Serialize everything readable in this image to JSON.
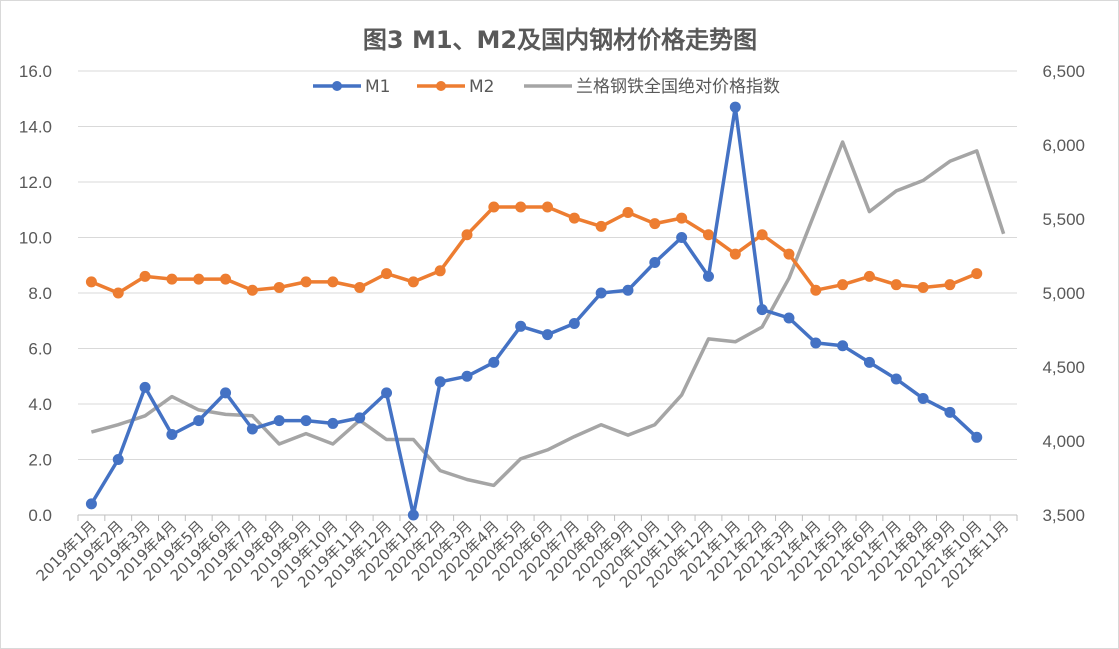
{
  "chart_data": {
    "type": "line",
    "title": "图3 M1、M2及国内钢材价格走势图",
    "categories": [
      "2019年1月",
      "2019年2月",
      "2019年3月",
      "2019年4月",
      "2019年5月",
      "2019年6月",
      "2019年7月",
      "2019年8月",
      "2019年9月",
      "2019年10月",
      "2019年11月",
      "2019年12月",
      "2020年1月",
      "2020年2月",
      "2020年3月",
      "2020年4月",
      "2020年5月",
      "2020年6月",
      "2020年7月",
      "2020年8月",
      "2020年9月",
      "2020年10月",
      "2020年11月",
      "2020年12月",
      "2021年1月",
      "2021年2月",
      "2021年3月",
      "2021年4月",
      "2021年5月",
      "2021年6月",
      "2021年7月",
      "2021年8月",
      "2021年9月",
      "2021年10月",
      "2021年11月"
    ],
    "series": [
      {
        "name": "M1",
        "axis": "left",
        "color": "#4472C4",
        "markers": true,
        "values": [
          0.4,
          2.0,
          4.6,
          2.9,
          3.4,
          4.4,
          3.1,
          3.4,
          3.4,
          3.3,
          3.5,
          4.4,
          0.0,
          4.8,
          5.0,
          5.5,
          6.8,
          6.5,
          6.9,
          8.0,
          8.1,
          9.1,
          10.0,
          8.6,
          14.7,
          7.4,
          7.1,
          6.2,
          6.1,
          5.5,
          4.9,
          4.2,
          3.7,
          2.8,
          null
        ]
      },
      {
        "name": "M2",
        "axis": "left",
        "color": "#ED7D31",
        "markers": true,
        "values": [
          8.4,
          8.0,
          8.6,
          8.5,
          8.5,
          8.5,
          8.1,
          8.2,
          8.4,
          8.4,
          8.2,
          8.7,
          8.4,
          8.8,
          10.1,
          11.1,
          11.1,
          11.1,
          10.7,
          10.4,
          10.9,
          10.5,
          10.7,
          10.1,
          9.4,
          10.1,
          9.4,
          8.1,
          8.3,
          8.6,
          8.3,
          8.2,
          8.3,
          8.7,
          null
        ]
      },
      {
        "name": "兰格钢铁全国绝对价格指数",
        "axis": "right",
        "color": "#A5A5A5",
        "markers": false,
        "values": [
          4060,
          4110,
          4170,
          4300,
          4210,
          4180,
          4170,
          3980,
          4050,
          3980,
          4140,
          4010,
          4010,
          3800,
          3740,
          3700,
          3880,
          3940,
          4030,
          4110,
          4040,
          4110,
          4310,
          4690,
          4670,
          4770,
          5100,
          5560,
          6020,
          5550,
          5690,
          5760,
          5890,
          5960,
          5400
        ]
      }
    ],
    "y_left": {
      "min": 0,
      "max": 16,
      "ticks": [
        "0.0",
        "2.0",
        "4.0",
        "6.0",
        "8.0",
        "10.0",
        "12.0",
        "14.0",
        "16.0"
      ]
    },
    "y_right": {
      "min": 3500,
      "max": 6500,
      "ticks": [
        "3,500",
        "4,000",
        "4,500",
        "5,000",
        "5,500",
        "6,000",
        "6,500"
      ]
    },
    "grid": true,
    "legend_position": "top"
  }
}
